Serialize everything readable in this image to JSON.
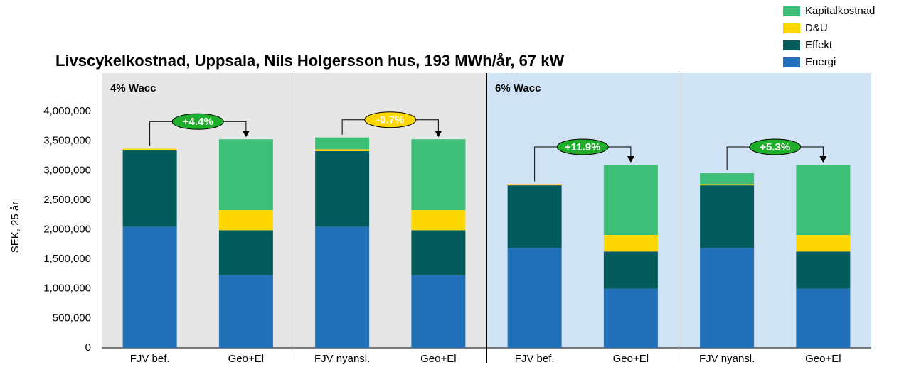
{
  "chart_data": {
    "type": "stacked_bar",
    "title": "Livscykelkostnad, Uppsala, Nils Holgersson hus, 193 MWh/år, 67 kW",
    "ylabel": "SEK, 25 år",
    "categories": [
      "FJV bef.",
      "Geo+El",
      "FJV nyansl.",
      "Geo+El",
      "FJV bef.",
      "Geo+El",
      "FJV nyansl.",
      "Geo+El"
    ],
    "series": [
      {
        "name": "Energi",
        "color": "#2271b8",
        "values": [
          2050000,
          1230000,
          2050000,
          1230000,
          1690000,
          1000000,
          1690000,
          1000000
        ]
      },
      {
        "name": "Effekt",
        "color": "#045b5c",
        "values": [
          1290000,
          760000,
          1280000,
          760000,
          1060000,
          630000,
          1060000,
          630000
        ]
      },
      {
        "name": "D&U",
        "color": "#ffd700",
        "values": [
          30000,
          340000,
          30000,
          340000,
          20000,
          280000,
          20000,
          280000
        ]
      },
      {
        "name": "Kapitalkostnad",
        "color": "#3dbf78",
        "values": [
          0,
          1200000,
          200000,
          1200000,
          0,
          1190000,
          185000,
          1190000
        ]
      }
    ],
    "ylim": [
      0,
      4650000
    ],
    "yticks": [
      0,
      {
        "value": 500000,
        "label": "500,000"
      },
      {
        "value": 1000000,
        "label": "1,000,000"
      },
      {
        "value": 1500000,
        "label": "1,500,000"
      },
      {
        "value": 2000000,
        "label": "2,000,000"
      },
      {
        "value": 2500000,
        "label": "2,500,000"
      },
      {
        "value": 3000000,
        "label": "3,000,000"
      },
      {
        "value": 3500000,
        "label": "3,500,000"
      },
      {
        "value": 4000000,
        "label": "4,000,000"
      }
    ],
    "panels": [
      {
        "label": "4% Wacc",
        "color": "#e6e6e6",
        "from": 0,
        "to": 3
      },
      {
        "label": "6% Wacc",
        "color": "#cfe3f5",
        "from": 4,
        "to": 7
      }
    ],
    "annotations": [
      {
        "text": "+4.4%",
        "from": 0,
        "to": 1,
        "color": "#1fae2a"
      },
      {
        "text": "-0.7%",
        "from": 2,
        "to": 3,
        "color": "#ffd700"
      },
      {
        "text": "+11.9%",
        "from": 4,
        "to": 5,
        "color": "#1fae2a"
      },
      {
        "text": "+5.3%",
        "from": 6,
        "to": 7,
        "color": "#1fae2a"
      }
    ],
    "legend": "top-right"
  }
}
